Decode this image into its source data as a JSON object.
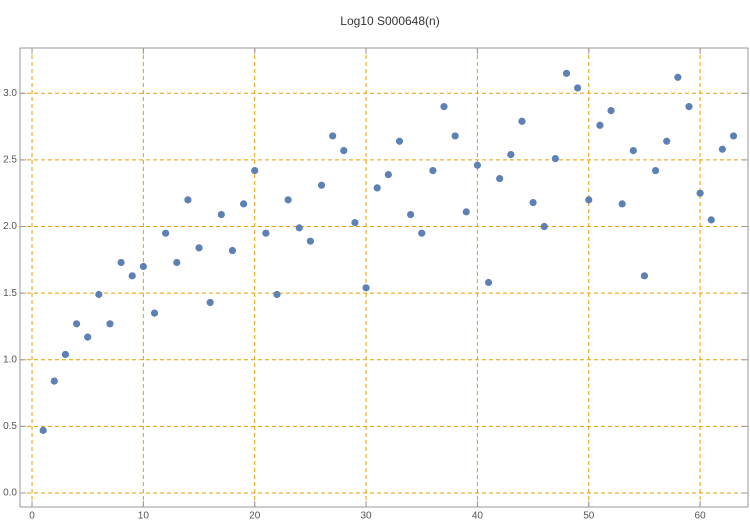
{
  "chart_data": {
    "type": "scatter",
    "title": "Log10 S000648(n)",
    "x": [
      1,
      2,
      3,
      4,
      5,
      6,
      7,
      8,
      9,
      10,
      11,
      12,
      13,
      14,
      15,
      16,
      17,
      18,
      19,
      20,
      21,
      22,
      23,
      24,
      25,
      26,
      27,
      28,
      29,
      30,
      31,
      32,
      33,
      34,
      35,
      36,
      37,
      38,
      39,
      40,
      41,
      42,
      43,
      44,
      45,
      46,
      47,
      48,
      49,
      50,
      51,
      52,
      53,
      54,
      55,
      56,
      57,
      58,
      59,
      60,
      61,
      62,
      63
    ],
    "values": [
      0.47,
      0.84,
      1.04,
      1.27,
      1.17,
      1.49,
      1.27,
      1.73,
      1.63,
      1.7,
      1.35,
      1.95,
      1.73,
      2.2,
      1.84,
      1.43,
      2.09,
      1.82,
      2.17,
      2.42,
      1.95,
      1.49,
      2.2,
      1.99,
      1.89,
      2.31,
      2.68,
      2.57,
      2.03,
      1.54,
      2.29,
      2.39,
      2.64,
      2.09,
      1.95,
      2.42,
      2.9,
      2.68,
      2.11,
      2.46,
      1.58,
      2.36,
      2.54,
      2.79,
      2.18,
      2.0,
      2.51,
      3.15,
      3.04,
      2.2,
      2.76,
      2.87,
      2.17,
      2.57,
      1.63,
      2.42,
      2.64,
      3.12,
      2.9,
      2.25,
      2.05,
      2.58,
      2.68
    ],
    "color": "#5e81b5",
    "xlim": [
      -1.08,
      64.3
    ],
    "ylim": [
      -0.105,
      3.34
    ],
    "xticks": [
      0,
      10,
      20,
      30,
      40,
      50,
      60
    ],
    "yticks": [
      {
        "value": 0,
        "label": "0.0"
      },
      0.5,
      {
        "value": 1,
        "label": "1.0"
      },
      1.5,
      {
        "value": 2,
        "label": "2.0"
      },
      2.5,
      {
        "value": 3,
        "label": "3.0"
      }
    ],
    "grid": true,
    "grid_color": "#e69f00"
  }
}
